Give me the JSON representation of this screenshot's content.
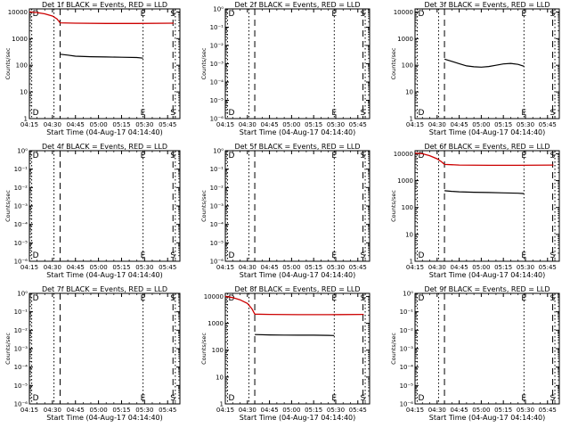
{
  "figure": {
    "xaxis_label": "Start Time (04-Aug-17 04:14:40)",
    "yaxis_label": "Counts/sec",
    "x_ticks": [
      "04:15",
      "04:30",
      "04:45",
      "05:00",
      "05:15",
      "05:30",
      "05:45"
    ],
    "colors": {
      "events": "#000000",
      "lld": "#cc0000",
      "axes": "#000000",
      "background": "#ffffff"
    }
  },
  "chart_data": [
    {
      "type": "line",
      "title": "Det 1f BLACK = Events, RED = LLD",
      "x_unit": "minutes after 04:15",
      "xlim": [
        0,
        98
      ],
      "y_scale": "log",
      "y_tick_labels": [
        "1",
        "10",
        "100",
        "1000",
        "10000"
      ],
      "y_tick_values": [
        1,
        10,
        100,
        1000,
        10000
      ],
      "ylim": [
        1,
        13000
      ],
      "markers": [
        {
          "label": "D",
          "style": "dotted",
          "x": 1.5
        },
        {
          "style": "dotted",
          "x": 16
        },
        {
          "style": "dashed",
          "x": 20
        },
        {
          "label": "E",
          "style": "dotted",
          "x": 74
        },
        {
          "label": "S",
          "style": "dashed",
          "x": 93.5
        },
        {
          "style": "dotted",
          "x": 95
        }
      ],
      "series": [
        {
          "name": "Events",
          "color": "#000000",
          "x": [
            20,
            25,
            30,
            40,
            50,
            60,
            70,
            74
          ],
          "y": [
            260,
            240,
            220,
            210,
            205,
            200,
            195,
            185
          ]
        },
        {
          "name": "LLD",
          "color": "#cc0000",
          "x": [
            0,
            5,
            10,
            15,
            18,
            20,
            30,
            50,
            70,
            94
          ],
          "y": [
            10000,
            9500,
            8500,
            7000,
            5500,
            3900,
            3800,
            3700,
            3700,
            3800
          ]
        }
      ]
    },
    {
      "type": "line",
      "title": "Det 2f BLACK = Events, RED = LLD",
      "x_unit": "minutes after 04:15",
      "xlim": [
        0,
        98
      ],
      "y_scale": "log",
      "y_tick_labels": [
        "10⁻⁶",
        "10⁻⁵",
        "10⁻⁴",
        "10⁻³",
        "10⁻²",
        "10⁻¹",
        "10⁰"
      ],
      "y_tick_values": [
        -6,
        -5,
        -4,
        -3,
        -2,
        -1,
        0
      ],
      "ylim": [
        -6,
        0
      ],
      "markers": [
        {
          "label": "D",
          "style": "dotted",
          "x": 1.5
        },
        {
          "style": "dotted",
          "x": 16
        },
        {
          "style": "dashed",
          "x": 20
        },
        {
          "label": "E",
          "style": "dotted",
          "x": 74
        },
        {
          "label": "S",
          "style": "dashed",
          "x": 93.5
        },
        {
          "style": "dotted",
          "x": 95
        }
      ],
      "series": []
    },
    {
      "type": "line",
      "title": "Det 3f BLACK = Events, RED = LLD",
      "x_unit": "minutes after 04:15",
      "xlim": [
        0,
        98
      ],
      "y_scale": "log",
      "y_tick_labels": [
        "1",
        "10",
        "100",
        "1000",
        "10000"
      ],
      "y_tick_values": [
        1,
        10,
        100,
        1000,
        10000
      ],
      "ylim": [
        1,
        13000
      ],
      "markers": [
        {
          "label": "D",
          "style": "dotted",
          "x": 1.5
        },
        {
          "style": "dotted",
          "x": 16
        },
        {
          "style": "dashed",
          "x": 20
        },
        {
          "label": "E",
          "style": "dotted",
          "x": 74
        },
        {
          "label": "S",
          "style": "dashed",
          "x": 93.5
        },
        {
          "style": "dotted",
          "x": 95
        }
      ],
      "series": [
        {
          "name": "Events",
          "color": "#000000",
          "x": [
            20,
            25,
            30,
            35,
            40,
            45,
            50,
            55,
            60,
            65,
            70,
            74
          ],
          "y": [
            170,
            140,
            115,
            95,
            88,
            85,
            90,
            100,
            112,
            118,
            108,
            92
          ]
        }
      ]
    },
    {
      "type": "line",
      "title": "Det 4f BLACK = Events, RED = LLD",
      "x_unit": "minutes after 04:15",
      "xlim": [
        0,
        98
      ],
      "y_scale": "log",
      "y_tick_labels": [
        "10⁻⁶",
        "10⁻⁵",
        "10⁻⁴",
        "10⁻³",
        "10⁻²",
        "10⁻¹",
        "10⁰"
      ],
      "y_tick_values": [
        -6,
        -5,
        -4,
        -3,
        -2,
        -1,
        0
      ],
      "ylim": [
        -6,
        0
      ],
      "markers": [
        {
          "label": "D",
          "style": "dotted",
          "x": 1.5
        },
        {
          "style": "dotted",
          "x": 16
        },
        {
          "style": "dashed",
          "x": 20
        },
        {
          "label": "E",
          "style": "dotted",
          "x": 74
        },
        {
          "label": "S",
          "style": "dashed",
          "x": 93.5
        },
        {
          "style": "dotted",
          "x": 95
        }
      ],
      "series": []
    },
    {
      "type": "line",
      "title": "Det 5f BLACK = Events, RED = LLD",
      "x_unit": "minutes after 04:15",
      "xlim": [
        0,
        98
      ],
      "y_scale": "log",
      "y_tick_labels": [
        "10⁻⁶",
        "10⁻⁵",
        "10⁻⁴",
        "10⁻³",
        "10⁻²",
        "10⁻¹",
        "10⁰"
      ],
      "y_tick_values": [
        -6,
        -5,
        -4,
        -3,
        -2,
        -1,
        0
      ],
      "ylim": [
        -6,
        0
      ],
      "markers": [
        {
          "label": "D",
          "style": "dotted",
          "x": 1.5
        },
        {
          "style": "dotted",
          "x": 16
        },
        {
          "style": "dashed",
          "x": 20
        },
        {
          "label": "E",
          "style": "dotted",
          "x": 74
        },
        {
          "label": "S",
          "style": "dashed",
          "x": 93.5
        },
        {
          "style": "dotted",
          "x": 95
        }
      ],
      "series": []
    },
    {
      "type": "line",
      "title": "Det 6f BLACK = Events, RED = LLD",
      "x_unit": "minutes after 04:15",
      "xlim": [
        0,
        98
      ],
      "y_scale": "log",
      "y_tick_labels": [
        "1",
        "10",
        "100",
        "1000",
        "10000"
      ],
      "y_tick_values": [
        1,
        10,
        100,
        1000,
        10000
      ],
      "ylim": [
        1,
        13000
      ],
      "markers": [
        {
          "label": "D",
          "style": "dotted",
          "x": 1.5
        },
        {
          "style": "dotted",
          "x": 16
        },
        {
          "style": "dashed",
          "x": 20
        },
        {
          "label": "E",
          "style": "dotted",
          "x": 74
        },
        {
          "label": "S",
          "style": "dashed",
          "x": 93.5
        },
        {
          "style": "dotted",
          "x": 95
        }
      ],
      "series": [
        {
          "name": "Events",
          "color": "#000000",
          "x": [
            20,
            25,
            30,
            40,
            50,
            60,
            70,
            74
          ],
          "y": [
            420,
            400,
            385,
            370,
            360,
            350,
            340,
            330
          ]
        },
        {
          "name": "LLD",
          "color": "#cc0000",
          "x": [
            0,
            5,
            10,
            15,
            18,
            20,
            30,
            50,
            70,
            94
          ],
          "y": [
            10500,
            10000,
            8500,
            6500,
            5000,
            4000,
            3800,
            3700,
            3700,
            3800
          ]
        }
      ]
    },
    {
      "type": "line",
      "title": "Det 7f BLACK = Events, RED = LLD",
      "x_unit": "minutes after 04:15",
      "xlim": [
        0,
        98
      ],
      "y_scale": "log",
      "y_tick_labels": [
        "10⁻⁶",
        "10⁻⁵",
        "10⁻⁴",
        "10⁻³",
        "10⁻²",
        "10⁻¹",
        "10⁰"
      ],
      "y_tick_values": [
        -6,
        -5,
        -4,
        -3,
        -2,
        -1,
        0
      ],
      "ylim": [
        -6,
        0
      ],
      "markers": [
        {
          "label": "D",
          "style": "dotted",
          "x": 1.5
        },
        {
          "style": "dotted",
          "x": 16
        },
        {
          "style": "dashed",
          "x": 20
        },
        {
          "label": "E",
          "style": "dotted",
          "x": 74
        },
        {
          "label": "S",
          "style": "dashed",
          "x": 93.5
        },
        {
          "style": "dotted",
          "x": 95
        }
      ],
      "series": []
    },
    {
      "type": "line",
      "title": "Det 8f BLACK = Events, RED = LLD",
      "x_unit": "minutes after 04:15",
      "xlim": [
        0,
        98
      ],
      "y_scale": "log",
      "y_tick_labels": [
        "1",
        "10",
        "100",
        "1000",
        "10000"
      ],
      "y_tick_values": [
        1,
        10,
        100,
        1000,
        10000
      ],
      "ylim": [
        1,
        13000
      ],
      "markers": [
        {
          "label": "D",
          "style": "dotted",
          "x": 1.5
        },
        {
          "style": "dotted",
          "x": 16
        },
        {
          "style": "dashed",
          "x": 20
        },
        {
          "label": "E",
          "style": "dotted",
          "x": 74
        },
        {
          "label": "S",
          "style": "dashed",
          "x": 93.5
        },
        {
          "style": "dotted",
          "x": 95
        }
      ],
      "series": [
        {
          "name": "Events",
          "color": "#000000",
          "x": [
            20,
            30,
            40,
            50,
            60,
            70,
            74
          ],
          "y": [
            380,
            370,
            365,
            360,
            360,
            355,
            350
          ]
        },
        {
          "name": "LLD",
          "color": "#cc0000",
          "x": [
            0,
            5,
            10,
            15,
            18,
            20,
            30,
            50,
            70,
            94
          ],
          "y": [
            10000,
            9000,
            7500,
            5500,
            3500,
            2200,
            2150,
            2100,
            2100,
            2150
          ]
        }
      ]
    },
    {
      "type": "line",
      "title": "Det 9f BLACK = Events, RED = LLD",
      "x_unit": "minutes after 04:15",
      "xlim": [
        0,
        98
      ],
      "y_scale": "log",
      "y_tick_labels": [
        "10⁻⁶",
        "10⁻⁵",
        "10⁻⁴",
        "10⁻³",
        "10⁻²",
        "10⁻¹",
        "10⁰"
      ],
      "y_tick_values": [
        -6,
        -5,
        -4,
        -3,
        -2,
        -1,
        0
      ],
      "ylim": [
        -6,
        0
      ],
      "markers": [
        {
          "label": "D",
          "style": "dotted",
          "x": 1.5
        },
        {
          "style": "dotted",
          "x": 16
        },
        {
          "style": "dashed",
          "x": 20
        },
        {
          "label": "E",
          "style": "dotted",
          "x": 74
        },
        {
          "label": "S",
          "style": "dashed",
          "x": 93.5
        },
        {
          "style": "dotted",
          "x": 95
        }
      ],
      "series": []
    }
  ]
}
